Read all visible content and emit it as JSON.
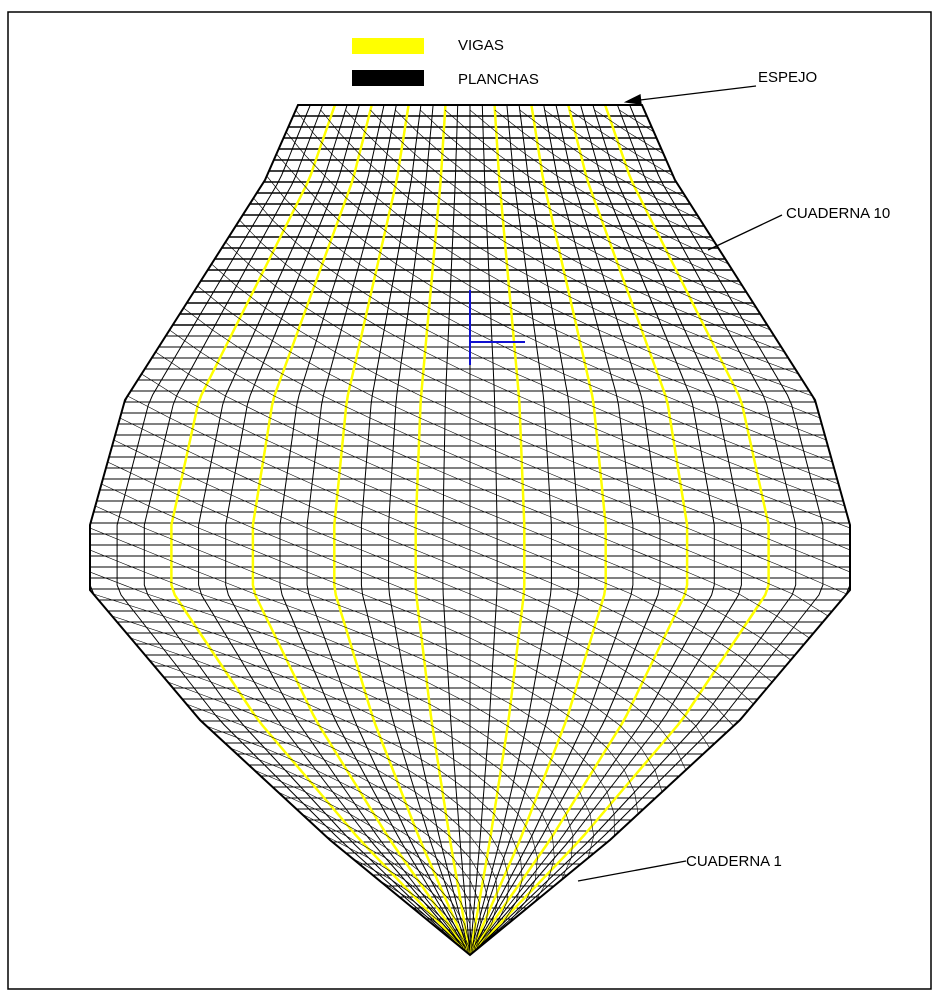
{
  "legend": [
    {
      "label": "VIGAS"
    },
    {
      "label": "PLANCHAS"
    }
  ],
  "annotations": [
    {
      "label": "ESPEJO"
    },
    {
      "label": "CUADERNA 10"
    },
    {
      "label": "CUADERNA 1"
    }
  ]
}
